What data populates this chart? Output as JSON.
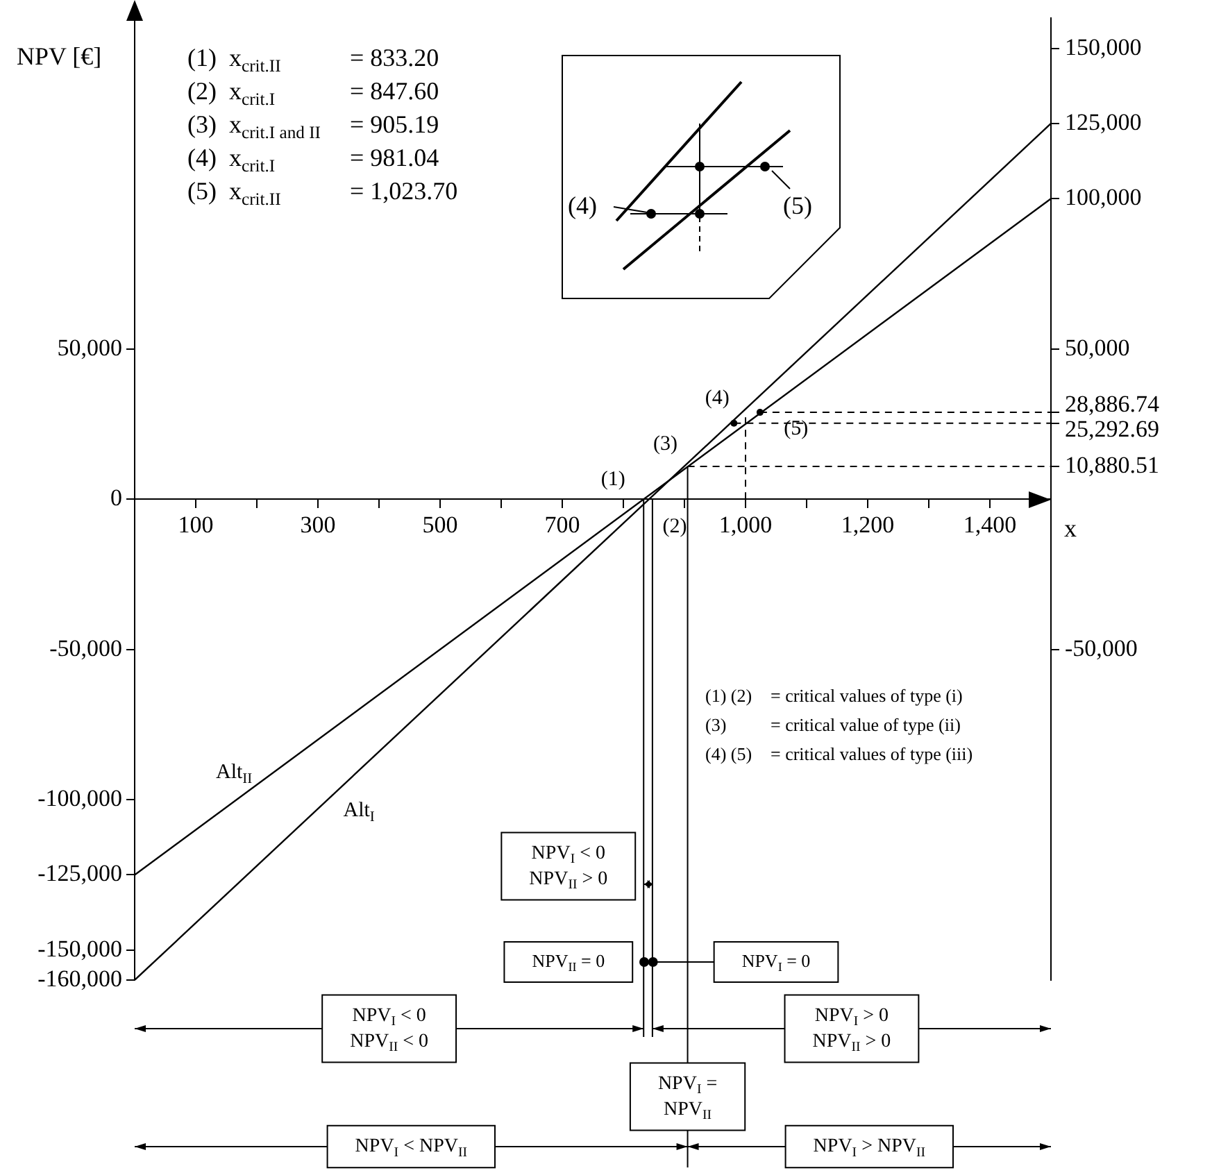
{
  "chart_data": {
    "type": "line",
    "xlabel": "x",
    "ylabel": "NPV [€]",
    "x": [
      0,
      1500
    ],
    "series": [
      {
        "name": "Alt$_{I}$",
        "color": "#000000",
        "values": [
          -160000,
          125000
        ]
      },
      {
        "name": "Alt$_{II}$",
        "color": "#000000",
        "values": [
          -125000,
          100000
        ]
      }
    ],
    "xlim": [
      0,
      1500
    ],
    "xticks": [
      100,
      {
        "value": 200,
        "label": null
      },
      300,
      {
        "value": 400,
        "label": null
      },
      500,
      {
        "value": 600,
        "label": null
      },
      700,
      {
        "value": 800,
        "label": null
      },
      {
        "value": 900,
        "label": null
      },
      {
        "value": 1000,
        "label": "1,000"
      },
      {
        "value": 1100,
        "label": null
      },
      {
        "value": 1200,
        "label": "1,200"
      },
      {
        "value": 1300,
        "label": null
      },
      {
        "value": 1400,
        "label": "1,400"
      }
    ],
    "ylim": [
      -160000,
      160000
    ],
    "yticks": [
      {
        "value": 50000,
        "label": "50,000"
      },
      0,
      {
        "value": -50000,
        "label": "-50,000"
      },
      {
        "value": -100000,
        "label": "-100,000"
      },
      {
        "value": -125000,
        "label": "-125,000"
      },
      {
        "value": -150000,
        "label": "-150,000"
      },
      {
        "value": -160000,
        "label": "-160,000"
      }
    ],
    "y2lim": [
      -160000,
      160000
    ],
    "y2ticks": [
      {
        "value": 150000,
        "label": "150,000"
      },
      {
        "value": 125000,
        "label": "125,000"
      },
      {
        "value": 100000,
        "label": "100,000"
      },
      {
        "value": 50000,
        "label": "50,000"
      },
      {
        "value": 28886.74,
        "label": "28,886.74"
      },
      {
        "value": 25292.69,
        "label": "25,292.69"
      },
      {
        "value": 10880.51,
        "label": "10,880.51"
      },
      {
        "value": -50000,
        "label": "-50,000"
      }
    ],
    "ref_lines": [
      {
        "axis": "x",
        "value": 833.2
      },
      {
        "axis": "x",
        "value": 847.6
      },
      {
        "axis": "x",
        "value": 905.19
      },
      {
        "axis": "x",
        "value": 1000,
        "line_style": "dashed"
      },
      {
        "axis": "y",
        "value": 10880.51,
        "line_style": "dashed"
      },
      {
        "axis": "y",
        "value": 25292.69,
        "line_style": "dashed"
      },
      {
        "axis": "y",
        "value": 28886.74,
        "line_style": "dashed"
      }
    ],
    "annotations": [
      "(1)  x$_{crit.II}$ = 833.20",
      "(2)  x$_{crit.I}$ = 847.60",
      "(3)  x$_{crit.I and II}$ = 905.19",
      "(4)  x$_{crit.I}$ = 981.04",
      "(5)  x$_{crit.II}$ = 1,023.70",
      {
        "text": "(1)",
        "x": 833.2,
        "y": 0
      },
      {
        "text": "(2)",
        "x": 847.6,
        "y": 0
      },
      {
        "text": "(3)",
        "x": 905.19,
        "y": 10880.51
      },
      {
        "text": "(4)",
        "x": 981.04,
        "y": 25292.69
      },
      {
        "text": "(5)",
        "x": 1023.7,
        "y": 28886.74
      },
      "(1) (2) = critical values of type (i)",
      "(3) = critical value of type (ii)",
      "(4) (5) = critical values of type (iii)",
      "NPV$_{I}$ < 0\nNPV$_{II}$ > 0",
      "NPV$_{II}$ = 0",
      "NPV$_{I}$ = 0",
      "NPV$_{I}$ < 0\nNPV$_{II}$ < 0",
      "NPV$_{I}$ > 0\nNPV$_{II}$ > 0",
      "NPV$_{I}$ =\nNPV$_{II}$",
      "NPV$_{I}$ < NPV$_{II}$",
      "NPV$_{I}$ > NPV$_{II}$"
    ],
    "grid": false,
    "legend": false,
    "marker": "none",
    "line_style": "solid"
  }
}
